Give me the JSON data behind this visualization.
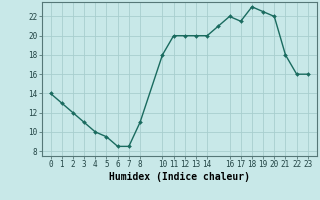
{
  "x": [
    0,
    1,
    2,
    3,
    4,
    5,
    6,
    7,
    8,
    10,
    11,
    12,
    13,
    14,
    15,
    16,
    17,
    18,
    19,
    20,
    21,
    22,
    23
  ],
  "y": [
    14,
    13,
    12,
    11,
    10,
    9.5,
    8.5,
    8.5,
    11,
    18,
    20,
    20,
    20,
    20,
    21,
    22,
    21.5,
    23,
    22.5,
    22,
    18,
    16,
    16
  ],
  "line_color": "#1a6b5f",
  "marker": "D",
  "marker_size": 2.0,
  "bg_color": "#c8e8e8",
  "grid_color": "#a8cece",
  "xlabel": "Humidex (Indice chaleur)",
  "xlabel_fontsize": 7,
  "ylim": [
    7.5,
    23.5
  ],
  "yticks": [
    8,
    10,
    12,
    14,
    16,
    18,
    20,
    22
  ],
  "xticks": [
    0,
    1,
    2,
    3,
    4,
    5,
    6,
    7,
    8,
    10,
    11,
    12,
    13,
    14,
    16,
    17,
    18,
    19,
    20,
    21,
    22,
    23
  ],
  "tick_fontsize": 5.5,
  "line_width": 1.0
}
